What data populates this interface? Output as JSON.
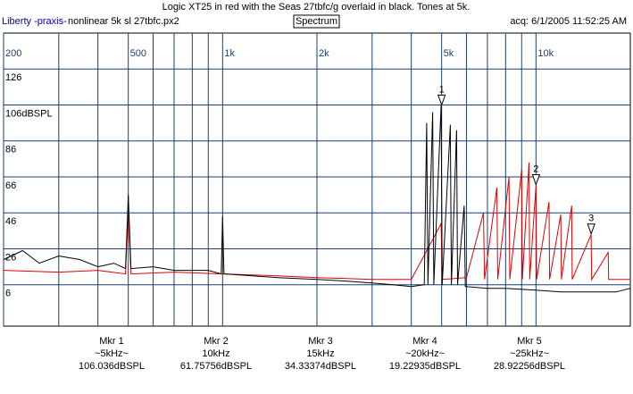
{
  "chart_data": {
    "type": "line",
    "title": "Logic XT25 in red with the Seas 27tbfc/g overlaid in black. Tones at 5k.",
    "app_name": "Liberty -praxis-",
    "file_name": "nonlinear 5k sl 27tbfc.px2",
    "view": "Spectrum",
    "acquired": "acq: 6/1/2005 11:52:25 AM",
    "xscale": "log",
    "grid": true,
    "xlim": [
      200,
      20000
    ],
    "ylim": [
      -17,
      146
    ],
    "xticks": [
      200,
      500,
      {
        "value": 1000,
        "label": "1k"
      },
      {
        "value": 2000,
        "label": "2k"
      },
      {
        "value": 5000,
        "label": "5k"
      },
      {
        "value": 10000,
        "label": "10k"
      }
    ],
    "xminor": [
      300,
      400,
      600,
      700,
      800,
      900,
      3000,
      4000,
      6000,
      7000,
      8000,
      9000
    ],
    "yticks": [
      6,
      26,
      46,
      66,
      86,
      {
        "value": 106,
        "label": "106dBSPL"
      },
      126
    ],
    "series": [
      {
        "name": "Logic XT25",
        "color": "#e00000",
        "x": [
          200,
          300,
          400,
          490,
          500,
          510,
          700,
          1000,
          1500,
          2000,
          3000,
          4000,
          4980,
          5020,
          6000,
          6800,
          6850,
          7500,
          7550,
          8200,
          8250,
          9000,
          9050,
          9500,
          9550,
          10000,
          10050,
          11000,
          11050,
          12000,
          12050,
          13000,
          13050,
          15000,
          15050,
          17000,
          17050,
          20000
        ],
        "values": [
          14,
          13,
          14,
          12,
          49,
          12,
          13,
          12,
          11,
          10,
          9,
          9,
          40,
          9,
          10,
          46,
          9,
          60,
          9,
          66,
          9,
          70,
          9,
          74,
          9,
          61,
          9,
          52,
          9,
          45,
          9,
          50,
          9,
          34,
          9,
          24,
          9,
          9
        ]
      },
      {
        "name": "Seas 27tbfc/g",
        "color": "#000000",
        "x": [
          200,
          230,
          260,
          300,
          350,
          400,
          450,
          490,
          500,
          510,
          600,
          700,
          800,
          900,
          990,
          1000,
          1010,
          1500,
          2000,
          2500,
          3000,
          3500,
          4000,
          4400,
          4480,
          4520,
          4680,
          4720,
          4980,
          5020,
          5330,
          5370,
          5580,
          5620,
          5900,
          5950,
          7000,
          8000,
          10000,
          12000,
          15000,
          18000,
          20000
        ],
        "values": [
          20,
          25,
          18,
          22,
          20,
          16,
          18,
          15,
          56,
          15,
          16,
          14,
          14,
          14,
          12,
          44,
          12,
          10,
          9,
          8,
          7,
          6,
          5,
          6,
          96,
          6,
          102,
          6,
          106,
          6,
          95,
          6,
          92,
          6,
          50,
          5,
          4,
          4,
          3,
          2,
          2,
          2,
          4
        ]
      }
    ],
    "markers": [
      {
        "name": "Mkr 1",
        "tag": "1",
        "freq": {
          "value": 5000,
          "label": "~5kHz~"
        },
        "level": {
          "value": 106.036,
          "label": "106.036dBSPL"
        }
      },
      {
        "name": "Mkr 2",
        "tag": "2",
        "freq": {
          "value": 10000,
          "label": "10kHz"
        },
        "level": {
          "value": 61.75756,
          "label": "61.75756dBSPL"
        }
      },
      {
        "name": "Mkr 3",
        "tag": "3",
        "freq": {
          "value": 15000,
          "label": "15kHz"
        },
        "level": {
          "value": 34.33374,
          "label": "34.33374dBSPL"
        }
      },
      {
        "name": "Mkr 4",
        "freq": {
          "value": 20000,
          "label": "~20kHz~"
        },
        "level": {
          "value": 19.22935,
          "label": "19.22935dBSPL"
        }
      },
      {
        "name": "Mkr 5",
        "freq": {
          "value": 25000,
          "label": "~25kHz~"
        },
        "level": {
          "value": 28.92256,
          "label": "28.92256dBSPL"
        }
      }
    ]
  }
}
